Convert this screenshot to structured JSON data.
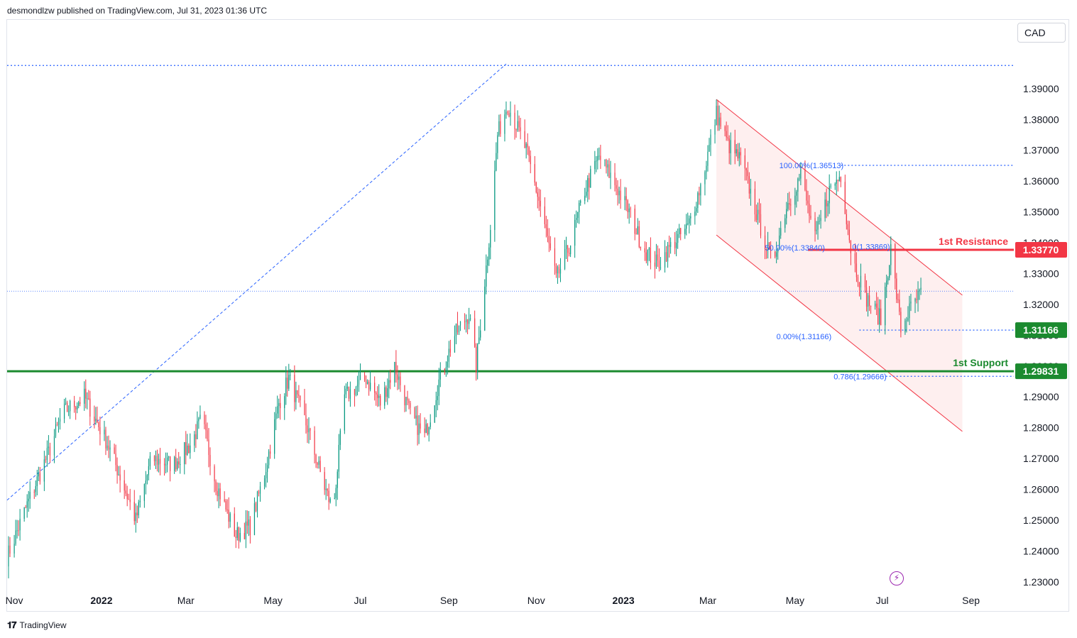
{
  "header": {
    "publisher": "desmondlzw published on TradingView.com, Jul 31, 2023 01:36 UTC"
  },
  "footer": {
    "brand": "TradingView",
    "logo_icon": "tradingview-logo-icon"
  },
  "currency": "CAD",
  "colors": {
    "up": "#089981",
    "down": "#f23645",
    "resistance": "#f23645",
    "support": "#1b8a2f",
    "fib": "#2962ff",
    "channel": "#f23645",
    "channel_fill": "#fde8e8"
  },
  "chart_data": {
    "type": "candlestick",
    "symbol_currency": "CAD",
    "y_ticks": [
      1.39,
      1.38,
      1.37,
      1.36,
      1.35,
      1.34,
      1.33,
      1.32,
      1.31,
      1.3,
      1.29,
      1.28,
      1.27,
      1.26,
      1.25,
      1.24,
      1.23
    ],
    "y_tick_labels": [
      "1.39000",
      "1.38000",
      "1.37000",
      "1.36000",
      "1.35000",
      "1.34000",
      "1.33000",
      "1.32000",
      "1.31000",
      "1.30000",
      "1.29000",
      "1.28000",
      "1.27000",
      "1.26000",
      "1.25000",
      "1.24000",
      "1.23000"
    ],
    "ylim": [
      1.2265,
      1.4123
    ],
    "x_ticks": [
      {
        "label": "Nov",
        "date": "2021-11-01",
        "bold": false
      },
      {
        "label": "2022",
        "date": "2022-01-01",
        "bold": true
      },
      {
        "label": "Mar",
        "date": "2022-03-01",
        "bold": false
      },
      {
        "label": "May",
        "date": "2022-05-01",
        "bold": false
      },
      {
        "label": "Jul",
        "date": "2022-07-01",
        "bold": false
      },
      {
        "label": "Sep",
        "date": "2022-09-01",
        "bold": false
      },
      {
        "label": "Nov",
        "date": "2022-11-01",
        "bold": false
      },
      {
        "label": "2023",
        "date": "2023-01-01",
        "bold": true
      },
      {
        "label": "Mar",
        "date": "2023-03-01",
        "bold": false
      },
      {
        "label": "May",
        "date": "2023-05-01",
        "bold": false
      },
      {
        "label": "Jul",
        "date": "2023-07-01",
        "bold": false
      },
      {
        "label": "Sep",
        "date": "2023-09-01",
        "bold": false
      }
    ],
    "xlim": [
      "2021-10-27",
      "2023-10-01"
    ],
    "price_path": [
      [
        "2021-10-27",
        1.238
      ],
      [
        "2021-11-10",
        1.255
      ],
      [
        "2021-11-25",
        1.272
      ],
      [
        "2021-12-05",
        1.285
      ],
      [
        "2021-12-20",
        1.29
      ],
      [
        "2022-01-05",
        1.275
      ],
      [
        "2022-01-15",
        1.263
      ],
      [
        "2022-01-25",
        1.25
      ],
      [
        "2022-02-05",
        1.27
      ],
      [
        "2022-02-20",
        1.268
      ],
      [
        "2022-03-05",
        1.275
      ],
      [
        "2022-03-12",
        1.283
      ],
      [
        "2022-03-22",
        1.262
      ],
      [
        "2022-04-05",
        1.245
      ],
      [
        "2022-04-15",
        1.248
      ],
      [
        "2022-04-25",
        1.265
      ],
      [
        "2022-05-05",
        1.288
      ],
      [
        "2022-05-12",
        1.296
      ],
      [
        "2022-05-25",
        1.28
      ],
      [
        "2022-06-05",
        1.262
      ],
      [
        "2022-06-12",
        1.253
      ],
      [
        "2022-06-20",
        1.29
      ],
      [
        "2022-07-05",
        1.296
      ],
      [
        "2022-07-15",
        1.288
      ],
      [
        "2022-07-25",
        1.3
      ],
      [
        "2022-08-05",
        1.284
      ],
      [
        "2022-08-15",
        1.277
      ],
      [
        "2022-08-25",
        1.295
      ],
      [
        "2022-09-05",
        1.31
      ],
      [
        "2022-09-15",
        1.317
      ],
      [
        "2022-09-20",
        1.3
      ],
      [
        "2022-09-25",
        1.323
      ],
      [
        "2022-10-01",
        1.35
      ],
      [
        "2022-10-05",
        1.375
      ],
      [
        "2022-10-12",
        1.385
      ],
      [
        "2022-10-25",
        1.37
      ],
      [
        "2022-11-05",
        1.35
      ],
      [
        "2022-11-15",
        1.328
      ],
      [
        "2022-11-25",
        1.34
      ],
      [
        "2022-12-05",
        1.357
      ],
      [
        "2022-12-15",
        1.368
      ],
      [
        "2022-12-25",
        1.36
      ],
      [
        "2023-01-05",
        1.35
      ],
      [
        "2023-01-15",
        1.338
      ],
      [
        "2023-01-25",
        1.333
      ],
      [
        "2023-02-05",
        1.34
      ],
      [
        "2023-02-15",
        1.345
      ],
      [
        "2023-02-25",
        1.36
      ],
      [
        "2023-03-07",
        1.382
      ],
      [
        "2023-03-15",
        1.372
      ],
      [
        "2023-03-25",
        1.366
      ],
      [
        "2023-04-05",
        1.348
      ],
      [
        "2023-04-15",
        1.333
      ],
      [
        "2023-04-25",
        1.352
      ],
      [
        "2023-05-05",
        1.362
      ],
      [
        "2023-05-15",
        1.341
      ],
      [
        "2023-05-25",
        1.357
      ],
      [
        "2023-06-02",
        1.362
      ],
      [
        "2023-06-10",
        1.335
      ],
      [
        "2023-06-20",
        1.322
      ],
      [
        "2023-06-30",
        1.315
      ],
      [
        "2023-07-07",
        1.338
      ],
      [
        "2023-07-14",
        1.312
      ],
      [
        "2023-07-20",
        1.318
      ],
      [
        "2023-07-28",
        1.3235
      ]
    ],
    "levels": [
      {
        "name": "resistance",
        "price": 1.3377,
        "label": "1.33770",
        "text": "1st Resistance",
        "from": "2023-05-10"
      },
      {
        "name": "support",
        "price": 1.29831,
        "label": "1.29831",
        "text": "1st Support",
        "from": "2021-10-27"
      },
      {
        "name": "swing-low",
        "price": 1.31166,
        "label": "1.31166",
        "text": "",
        "from": "2023-06-15"
      }
    ],
    "fibonacci": [
      {
        "text": "100.00%(1.36513)",
        "price": 1.36513
      },
      {
        "text": "0(1.33869)",
        "price": 1.33869
      },
      {
        "text": "50.00%(1.33840)",
        "price": 1.3384
      },
      {
        "text": "0.00%(1.31166)",
        "price": 1.31166
      },
      {
        "text": "0.786(1.29666)",
        "price": 1.29666
      }
    ],
    "dotted_levels": [
      1.3975,
      1.3651,
      1.3243,
      1.2983,
      1.29666
    ],
    "channel": {
      "upper": [
        [
          "2023-03-07",
          1.3865
        ],
        [
          "2023-08-26",
          1.323
        ]
      ],
      "lower": [
        [
          "2023-03-07",
          1.3425
        ],
        [
          "2023-08-26",
          1.2788
        ]
      ]
    },
    "trendline": [
      [
        "2021-10-27",
        1.2565
      ],
      [
        "2022-10-11",
        1.398
      ]
    ]
  }
}
